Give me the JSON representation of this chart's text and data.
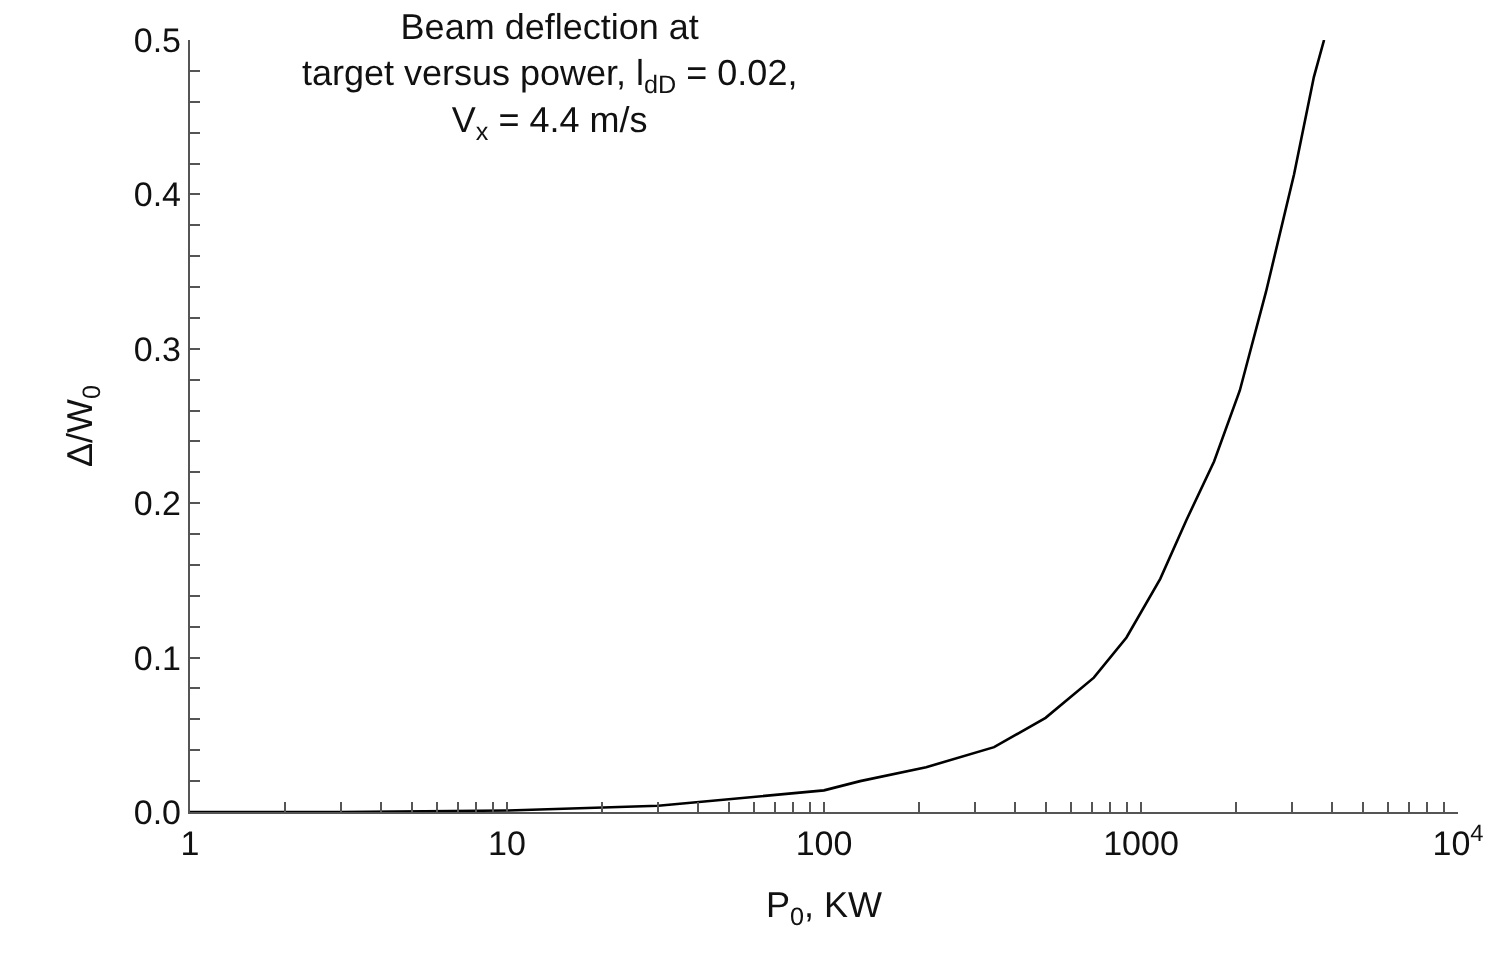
{
  "chart_data": {
    "type": "line",
    "title": "Beam deflection at\ntarget versus power, l$_{dD}$ = 0.02,\nV$_{x}$ = 4.4 m/s",
    "xlabel": "P$_{0}$, KW",
    "ylabel": "Δ/W$_{0}$",
    "log": "x",
    "x": [
      1,
      3,
      10,
      30,
      100,
      130,
      210,
      344,
      500,
      710,
      900,
      1150,
      1390,
      1700,
      2050,
      2480,
      3040,
      3510,
      3780
    ],
    "series": [
      {
        "color": "#000000",
        "values": [
          0,
          0,
          0.001,
          0.004,
          0.014,
          0.02,
          0.029,
          0.042,
          0.061,
          0.087,
          0.113,
          0.151,
          0.189,
          0.227,
          0.273,
          0.337,
          0.413,
          0.476,
          0.5
        ]
      }
    ],
    "xlim": [
      1,
      10000
    ],
    "ylim": [
      0,
      0.5
    ],
    "xticks": [
      1,
      {
        "value": 2,
        "label": null
      },
      {
        "value": 3,
        "label": null
      },
      {
        "value": 4,
        "label": null
      },
      {
        "value": 5,
        "label": null
      },
      {
        "value": 6,
        "label": null
      },
      {
        "value": 7,
        "label": null
      },
      {
        "value": 8,
        "label": null
      },
      {
        "value": 9,
        "label": null
      },
      10,
      {
        "value": 20,
        "label": null
      },
      {
        "value": 30,
        "label": null
      },
      {
        "value": 40,
        "label": null
      },
      {
        "value": 50,
        "label": null
      },
      {
        "value": 60,
        "label": null
      },
      {
        "value": 70,
        "label": null
      },
      {
        "value": 80,
        "label": null
      },
      {
        "value": 90,
        "label": null
      },
      100,
      {
        "value": 200,
        "label": null
      },
      {
        "value": 300,
        "label": null
      },
      {
        "value": 400,
        "label": null
      },
      {
        "value": 500,
        "label": null
      },
      {
        "value": 600,
        "label": null
      },
      {
        "value": 700,
        "label": null
      },
      {
        "value": 800,
        "label": null
      },
      {
        "value": 900,
        "label": null
      },
      1000,
      {
        "value": 2000,
        "label": null
      },
      {
        "value": 3000,
        "label": null
      },
      {
        "value": 4000,
        "label": null
      },
      {
        "value": 5000,
        "label": null
      },
      {
        "value": 6000,
        "label": null
      },
      {
        "value": 7000,
        "label": null
      },
      {
        "value": 8000,
        "label": null
      },
      {
        "value": 9000,
        "label": null
      },
      {
        "value": 10000,
        "label": "10$^{4}$"
      }
    ],
    "yticks": [
      {
        "value": 0,
        "label": "0.0"
      },
      {
        "value": 0.02,
        "label": null
      },
      {
        "value": 0.04,
        "label": null
      },
      {
        "value": 0.06,
        "label": null
      },
      {
        "value": 0.08,
        "label": null
      },
      {
        "value": 0.1,
        "label": "0.1"
      },
      {
        "value": 0.12,
        "label": null
      },
      {
        "value": 0.14,
        "label": null
      },
      {
        "value": 0.16,
        "label": null
      },
      {
        "value": 0.18,
        "label": null
      },
      {
        "value": 0.2,
        "label": "0.2"
      },
      {
        "value": 0.22,
        "label": null
      },
      {
        "value": 0.24,
        "label": null
      },
      {
        "value": 0.26,
        "label": null
      },
      {
        "value": 0.28,
        "label": null
      },
      {
        "value": 0.3,
        "label": "0.3"
      },
      {
        "value": 0.32,
        "label": null
      },
      {
        "value": 0.34,
        "label": null
      },
      {
        "value": 0.36,
        "label": null
      },
      {
        "value": 0.38,
        "label": null
      },
      {
        "value": 0.4,
        "label": "0.4"
      },
      {
        "value": 0.42,
        "label": null
      },
      {
        "value": 0.44,
        "label": null
      },
      {
        "value": 0.46,
        "label": null
      },
      {
        "value": 0.48,
        "label": null
      },
      {
        "value": 0.5,
        "label": "0.5"
      }
    ],
    "marker": "none",
    "line_style": "solid"
  }
}
